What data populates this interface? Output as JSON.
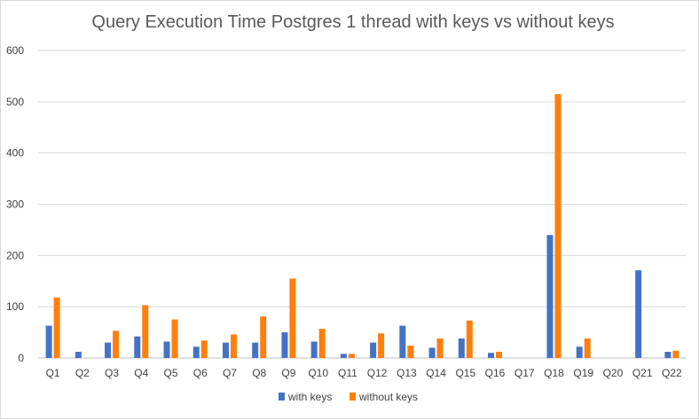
{
  "chart_data": {
    "type": "bar",
    "title": "Query Execution Time Postgres 1 thread with keys vs without keys",
    "xlabel": "",
    "ylabel": "",
    "ylim": [
      0,
      600
    ],
    "yticks": [
      0,
      100,
      200,
      300,
      400,
      500,
      600
    ],
    "grid": true,
    "legend_position": "bottom",
    "categories": [
      "Q1",
      "Q2",
      "Q3",
      "Q4",
      "Q5",
      "Q6",
      "Q7",
      "Q8",
      "Q9",
      "Q10",
      "Q11",
      "Q12",
      "Q13",
      "Q14",
      "Q15",
      "Q16",
      "Q17",
      "Q18",
      "Q19",
      "Q20",
      "Q21",
      "Q22"
    ],
    "series": [
      {
        "name": "with keys",
        "color": "#4472c4",
        "values": [
          63,
          12,
          30,
          42,
          32,
          22,
          30,
          30,
          50,
          32,
          8,
          30,
          63,
          20,
          38,
          10,
          0,
          240,
          22,
          0,
          171,
          12
        ]
      },
      {
        "name": "without keys",
        "color": "#ff7f0e",
        "values": [
          118,
          0,
          53,
          103,
          75,
          34,
          46,
          81,
          155,
          57,
          8,
          48,
          24,
          38,
          73,
          12,
          0,
          515,
          38,
          0,
          0,
          14
        ]
      }
    ]
  }
}
